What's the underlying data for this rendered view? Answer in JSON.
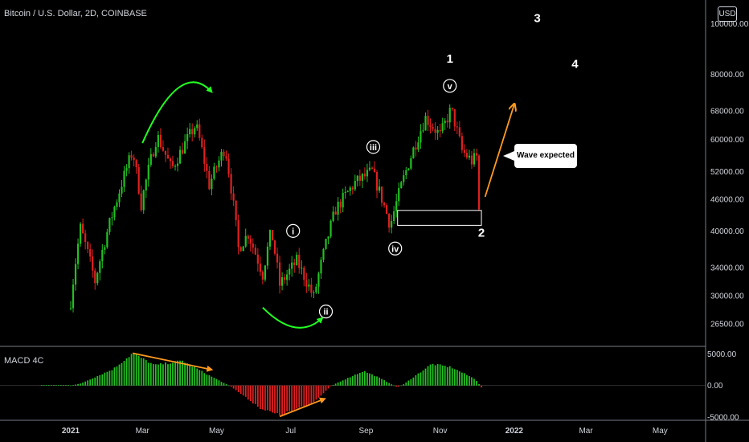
{
  "header": {
    "symbol": "Bitcoin / U.S. Dollar, 2D, COINBASE"
  },
  "currency_button": "USD",
  "macd_panel": {
    "label": "MACD 4C"
  },
  "callout": {
    "text": "Wave expected"
  },
  "colors": {
    "up": "#22c022",
    "down": "#e02020",
    "macd_pos": "#22c022",
    "macd_neg": "#e02020",
    "arrow_green": "#22ff22",
    "arrow_orange": "#ff9a1f",
    "grid": "#1a1a1a"
  },
  "chart_data": [
    {
      "type": "candlestick",
      "title": "Bitcoin / U.S. Dollar, 2D, COINBASE",
      "x_ticks": [
        "2021",
        "Mar",
        "May",
        "Jul",
        "Sep",
        "Nov",
        "2022",
        "Mar",
        "May"
      ],
      "y_scale": "log",
      "y_ticks": [
        "100000.00",
        "80000.00",
        "68000.00",
        "60000.00",
        "52000.00",
        "46000.00",
        "40000.00",
        "34000.00",
        "30000.00",
        "26500.00"
      ],
      "ylim": [
        24000,
        108000
      ],
      "close_path": [
        [
          "2021-01-01",
          29300
        ],
        [
          "2021-01-09",
          40500
        ],
        [
          "2021-01-21",
          32000
        ],
        [
          "2021-02-08",
          46000
        ],
        [
          "2021-02-21",
          57000
        ],
        [
          "2021-02-28",
          45000
        ],
        [
          "2021-03-13",
          61000
        ],
        [
          "2021-03-25",
          52500
        ],
        [
          "2021-04-14",
          64000
        ],
        [
          "2021-04-25",
          49000
        ],
        [
          "2021-05-08",
          58000
        ],
        [
          "2021-05-19",
          37000
        ],
        [
          "2021-05-27",
          39500
        ],
        [
          "2021-06-08",
          33000
        ],
        [
          "2021-06-15",
          40000
        ],
        [
          "2021-06-22",
          31500
        ],
        [
          "2021-07-06",
          35000
        ],
        [
          "2021-07-20",
          29800
        ],
        [
          "2021-08-07",
          44000
        ],
        [
          "2021-08-23",
          49500
        ],
        [
          "2021-09-06",
          52000
        ],
        [
          "2021-09-21",
          41000
        ],
        [
          "2021-10-20",
          66000
        ],
        [
          "2021-11-01",
          61000
        ],
        [
          "2021-11-10",
          68500
        ],
        [
          "2021-11-19",
          57000
        ],
        [
          "2021-11-27",
          54500
        ],
        [
          "2021-12-03",
          56000
        ],
        [
          "2021-12-04",
          44000
        ]
      ],
      "wave_labels": [
        {
          "text": "i",
          "date": "2021-07-03",
          "price": 40000,
          "circled": true
        },
        {
          "text": "ii",
          "date": "2021-07-30",
          "price": 28000,
          "circled": true
        },
        {
          "text": "iii",
          "date": "2021-09-07",
          "price": 58000,
          "circled": true
        },
        {
          "text": "iv",
          "date": "2021-09-25",
          "price": 37000,
          "circled": true
        },
        {
          "text": "v",
          "date": "2021-11-09",
          "price": 76000,
          "circled": true
        },
        {
          "text": "1",
          "date": "2021-11-09",
          "price": 86000,
          "circled": false
        },
        {
          "text": "2",
          "date": "2021-12-05",
          "price": 39800,
          "circled": false
        },
        {
          "text": "3",
          "date": "2022-01-20",
          "price": 103000,
          "circled": false
        },
        {
          "text": "4",
          "date": "2022-02-20",
          "price": 84000,
          "circled": false
        }
      ],
      "support_zone": {
        "start": "2021-09-27",
        "end": "2021-12-05",
        "low": 41000,
        "high": 43800
      }
    },
    {
      "type": "bar",
      "title": "MACD 4C",
      "y_ticks": [
        "5000.00",
        "0.00",
        "-5000.00"
      ],
      "ylim": [
        -5500,
        5800
      ],
      "histogram_path": [
        [
          "2021-01-01",
          0
        ],
        [
          "2021-01-09",
          300
        ],
        [
          "2021-02-05",
          2600
        ],
        [
          "2021-02-21",
          5100
        ],
        [
          "2021-03-11",
          3200
        ],
        [
          "2021-04-03",
          3900
        ],
        [
          "2021-04-21",
          2000
        ],
        [
          "2021-05-08",
          300
        ],
        [
          "2021-05-13",
          -200
        ],
        [
          "2021-06-07",
          -3700
        ],
        [
          "2021-06-22",
          -4700
        ],
        [
          "2021-07-19",
          -2800
        ],
        [
          "2021-08-03",
          -100
        ],
        [
          "2021-08-07",
          300
        ],
        [
          "2021-08-30",
          2300
        ],
        [
          "2021-09-11",
          1300
        ],
        [
          "2021-09-27",
          -300
        ],
        [
          "2021-10-02",
          200
        ],
        [
          "2021-10-25",
          3400
        ],
        [
          "2021-11-10",
          2900
        ],
        [
          "2021-11-30",
          1000
        ],
        [
          "2021-12-05",
          -300
        ]
      ]
    }
  ]
}
